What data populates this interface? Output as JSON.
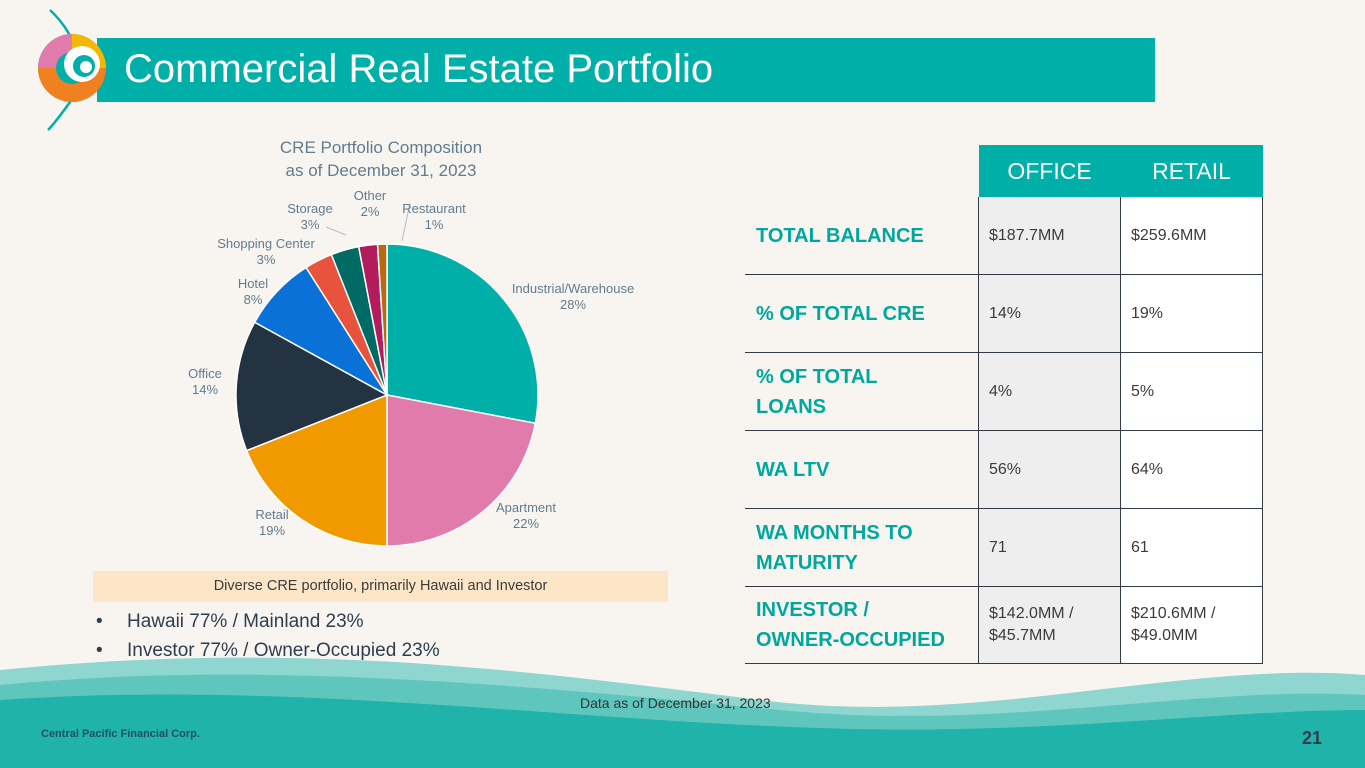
{
  "slide": {
    "title": "Commercial Real Estate Portfolio",
    "footer_company": "Central Pacific Financial Corp.",
    "page_number": "21",
    "data_as_of": "Data as of December 31, 2023"
  },
  "chart_data": {
    "type": "pie",
    "title_line1": "CRE Portfolio Composition",
    "title_line2": "as of December 31, 2023",
    "categories": [
      "Industrial/Warehouse",
      "Apartment",
      "Retail",
      "Office",
      "Hotel",
      "Shopping Center",
      "Storage",
      "Other",
      "Restaurant"
    ],
    "values": [
      28,
      22,
      19,
      14,
      8,
      3,
      3,
      2,
      1
    ],
    "labels": [
      "28%",
      "22%",
      "19%",
      "14%",
      "8%",
      "3%",
      "3%",
      "2%",
      "1%"
    ],
    "colors": [
      "#00b0a8",
      "#e07bab",
      "#f09a00",
      "#243342",
      "#0a72d6",
      "#e7533d",
      "#006b64",
      "#b31c5c",
      "#b56b10"
    ],
    "start_angle_deg": 0,
    "direction": "clockwise"
  },
  "pie_note": "Diverse CRE portfolio, primarily Hawaii and Investor",
  "bullets": [
    "Hawaii 77% / Mainland 23%",
    "Investor 77% / Owner-Occupied 23%"
  ],
  "table": {
    "headers": [
      "OFFICE",
      "RETAIL"
    ],
    "rows": [
      {
        "label_line1": "TOTAL BALANCE",
        "label_line2": "",
        "office_line1": "$187.7MM",
        "office_line2": "",
        "retail_line1": "$259.6MM",
        "retail_line2": ""
      },
      {
        "label_line1": "% OF TOTAL CRE",
        "label_line2": "",
        "office_line1": "14%",
        "office_line2": "",
        "retail_line1": "19%",
        "retail_line2": ""
      },
      {
        "label_line1": "% OF TOTAL",
        "label_line2": "LOANS",
        "office_line1": "4%",
        "office_line2": "",
        "retail_line1": "5%",
        "retail_line2": ""
      },
      {
        "label_line1": "WA LTV",
        "label_line2": "",
        "office_line1": "56%",
        "office_line2": "",
        "retail_line1": "64%",
        "retail_line2": ""
      },
      {
        "label_line1": "WA MONTHS TO",
        "label_line2": "MATURITY",
        "office_line1": "71",
        "office_line2": "",
        "retail_line1": "61",
        "retail_line2": ""
      },
      {
        "label_line1": "INVESTOR /",
        "label_line2": "OWNER-OCCUPIED",
        "office_line1": "$142.0MM /",
        "office_line2": "$45.7MM",
        "retail_line1": "$210.6MM /",
        "retail_line2": "$49.0MM"
      }
    ]
  },
  "colors": {
    "teal": "#00b0a8",
    "label_teal": "#00a79d",
    "note_bg": "#fde6c8",
    "page_bg": "#f8f5f1"
  }
}
